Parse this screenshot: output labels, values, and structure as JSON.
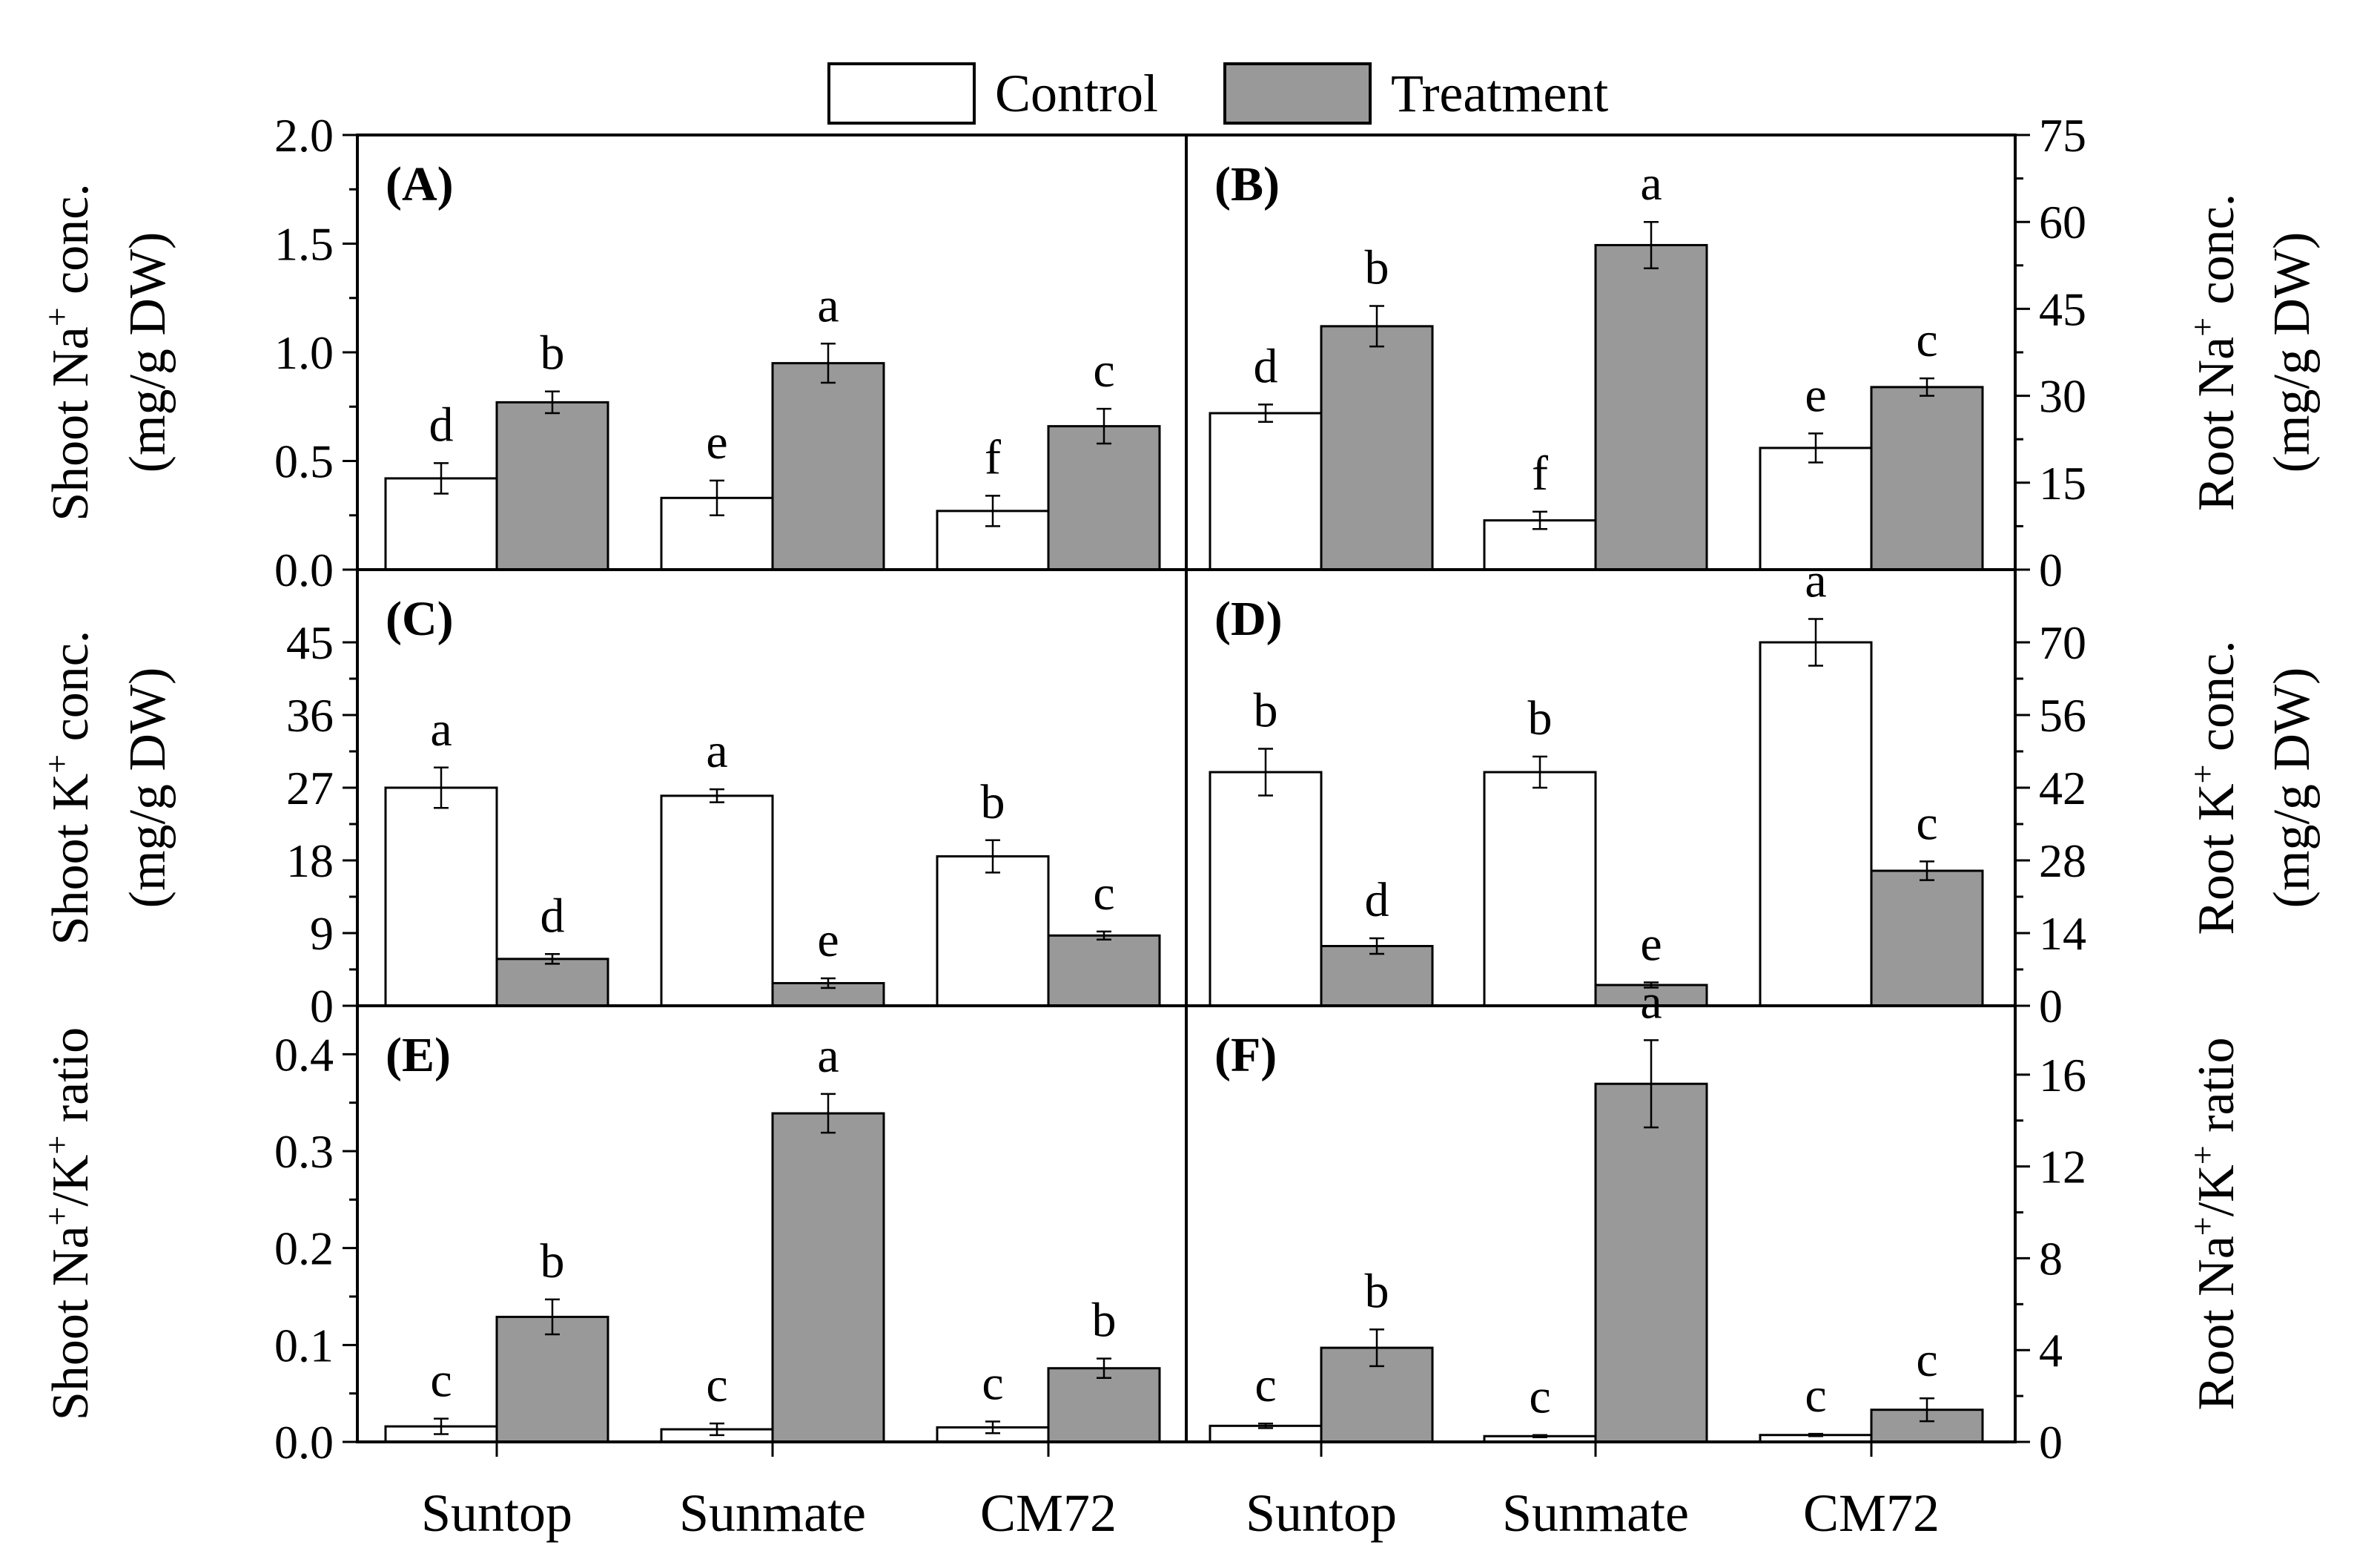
{
  "legend": {
    "control": "Control",
    "treatment": "Treatment",
    "control_color": "#ffffff",
    "treatment_color": "#999999"
  },
  "chart_data": [
    {
      "type": "bar",
      "panel": "(A)",
      "title": "",
      "xlabel": "",
      "ylabel": [
        [
          "Shoot Na",
          "+",
          " conc."
        ],
        [
          "(mg/g DW)"
        ]
      ],
      "ylim": [
        0,
        2.0
      ],
      "yticks": [
        "0.0",
        "0.5",
        "1.0",
        "1.5",
        "2.0"
      ],
      "categories": [
        "Suntop",
        "Sunmate",
        "CM72"
      ],
      "series": [
        {
          "name": "Control",
          "values": [
            0.42,
            0.33,
            0.27
          ],
          "errors": [
            0.07,
            0.08,
            0.07
          ],
          "letters": [
            "d",
            "e",
            "f"
          ]
        },
        {
          "name": "Treatment",
          "values": [
            0.77,
            0.95,
            0.66
          ],
          "errors": [
            0.05,
            0.09,
            0.08
          ],
          "letters": [
            "b",
            "a",
            "c"
          ]
        }
      ]
    },
    {
      "type": "bar",
      "panel": "(B)",
      "title": "",
      "xlabel": "",
      "ylabel": [
        [
          "Root Na",
          "+",
          " conc."
        ],
        [
          "(mg/g DW)"
        ]
      ],
      "ylim": [
        0,
        75
      ],
      "yticks": [
        "0",
        "15",
        "30",
        "45",
        "60",
        "75"
      ],
      "categories": [
        "Suntop",
        "Sunmate",
        "CM72"
      ],
      "series": [
        {
          "name": "Control",
          "values": [
            27,
            8.5,
            21
          ],
          "errors": [
            1.5,
            1.5,
            2.5
          ],
          "letters": [
            "d",
            "f",
            "e"
          ]
        },
        {
          "name": "Treatment",
          "values": [
            42,
            56,
            31.5
          ],
          "errors": [
            3.5,
            4.0,
            1.5
          ],
          "letters": [
            "b",
            "a",
            "c"
          ]
        }
      ]
    },
    {
      "type": "bar",
      "panel": "(C)",
      "title": "",
      "xlabel": "",
      "ylabel": [
        [
          "Shoot K",
          "+",
          " conc."
        ],
        [
          "(mg/g DW)"
        ]
      ],
      "ylim": [
        0,
        54
      ],
      "yticks": [
        "0",
        "9",
        "18",
        "27",
        "36",
        "45"
      ],
      "categories": [
        "Suntop",
        "Sunmate",
        "CM72"
      ],
      "series": [
        {
          "name": "Control",
          "values": [
            27,
            26,
            18.5
          ],
          "errors": [
            2.5,
            0.8,
            2.0
          ],
          "letters": [
            "a",
            "a",
            "b"
          ]
        },
        {
          "name": "Treatment",
          "values": [
            5.8,
            2.8,
            8.7
          ],
          "errors": [
            0.6,
            0.6,
            0.5
          ],
          "letters": [
            "d",
            "e",
            "c"
          ]
        }
      ]
    },
    {
      "type": "bar",
      "panel": "(D)",
      "title": "",
      "xlabel": "",
      "ylabel": [
        [
          "Root K",
          "+",
          " conc."
        ],
        [
          "(mg/g DW)"
        ]
      ],
      "ylim": [
        0,
        84
      ],
      "yticks": [
        "0",
        "14",
        "28",
        "42",
        "56",
        "70"
      ],
      "categories": [
        "Suntop",
        "Sunmate",
        "CM72"
      ],
      "series": [
        {
          "name": "Control",
          "values": [
            45,
            45,
            70
          ],
          "errors": [
            4.5,
            3.0,
            4.5
          ],
          "letters": [
            "b",
            "b",
            "a"
          ]
        },
        {
          "name": "Treatment",
          "values": [
            11.5,
            4,
            26
          ],
          "errors": [
            1.5,
            0.5,
            1.8
          ],
          "letters": [
            "d",
            "e",
            "c"
          ]
        }
      ]
    },
    {
      "type": "bar",
      "panel": "(E)",
      "title": "",
      "xlabel": "",
      "ylabel": [
        [
          "Shoot Na",
          "+",
          "/K",
          "+",
          " ratio"
        ]
      ],
      "ylim": [
        0,
        0.45
      ],
      "yticks": [
        "0.0",
        "0.1",
        "0.2",
        "0.3",
        "0.4"
      ],
      "categories": [
        "Suntop",
        "Sunmate",
        "CM72"
      ],
      "series": [
        {
          "name": "Control",
          "values": [
            0.016,
            0.013,
            0.015
          ],
          "errors": [
            0.008,
            0.006,
            0.006
          ],
          "letters": [
            "c",
            "c",
            "c"
          ]
        },
        {
          "name": "Treatment",
          "values": [
            0.129,
            0.339,
            0.076
          ],
          "errors": [
            0.018,
            0.02,
            0.01
          ],
          "letters": [
            "b",
            "a",
            "b"
          ]
        }
      ]
    },
    {
      "type": "bar",
      "panel": "(F)",
      "title": "",
      "xlabel": "",
      "ylabel": [
        [
          "Root Na",
          "+",
          "/K",
          "+",
          " ratio"
        ]
      ],
      "ylim": [
        0,
        19
      ],
      "yticks": [
        "0",
        "4",
        "8",
        "12",
        "16"
      ],
      "categories": [
        "Suntop",
        "Sunmate",
        "CM72"
      ],
      "series": [
        {
          "name": "Control",
          "values": [
            0.7,
            0.25,
            0.3
          ],
          "errors": [
            0.1,
            0.05,
            0.05
          ],
          "letters": [
            "c",
            "c",
            "c"
          ]
        },
        {
          "name": "Treatment",
          "values": [
            4.1,
            15.6,
            1.4
          ],
          "errors": [
            0.8,
            1.9,
            0.5
          ],
          "letters": [
            "b",
            "a",
            "c"
          ]
        }
      ]
    }
  ]
}
